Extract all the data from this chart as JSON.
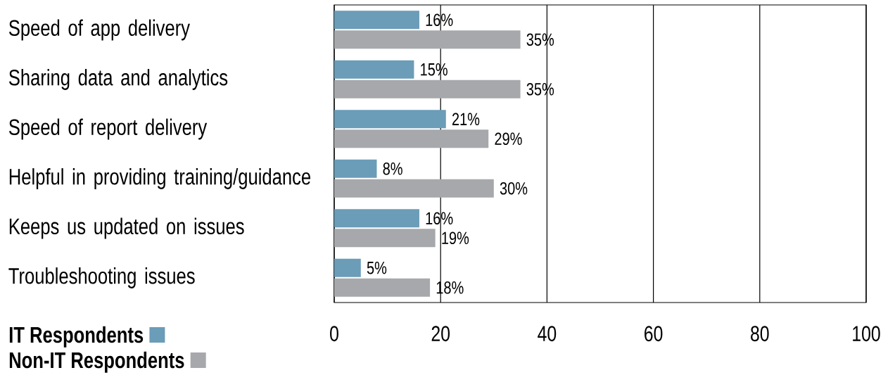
{
  "chart_data": {
    "type": "bar",
    "orientation": "horizontal",
    "categories": [
      "Speed of app delivery",
      "Sharing data and analytics",
      "Speed of report delivery",
      "Helpful in providing training/guidance",
      "Keeps us updated on issues",
      "Troubleshooting issues"
    ],
    "series": [
      {
        "name": "IT Respondents",
        "color": "#6b9cb8",
        "values": [
          16,
          15,
          21,
          8,
          16,
          5
        ],
        "value_labels": [
          "16%",
          "15%",
          "21%",
          "8%",
          "16%",
          "5%"
        ]
      },
      {
        "name": "Non-IT Respondents",
        "color": "#a7a8ab",
        "values": [
          35,
          35,
          29,
          30,
          19,
          18
        ],
        "value_labels": [
          "35%",
          "35%",
          "29%",
          "30%",
          "19%",
          "18%"
        ]
      }
    ],
    "xlim": [
      0,
      100
    ],
    "xticks": [
      0,
      20,
      40,
      60,
      80,
      100
    ],
    "grid": "x",
    "legend": "bottom left"
  }
}
